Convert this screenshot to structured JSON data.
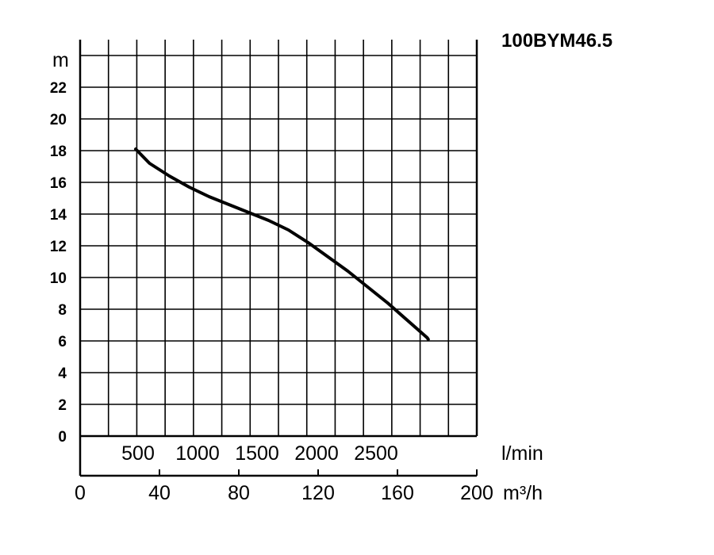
{
  "chart_data": {
    "type": "line",
    "title": "100BYM46.5",
    "ylabel": "m",
    "ylim": [
      0,
      24
    ],
    "yticks": [
      "0",
      "2",
      "4",
      "6",
      "8",
      "10",
      "12",
      "14",
      "16",
      "18",
      "20",
      "22"
    ],
    "x_lpm_label": "l/min",
    "x_lpm_ticks": [
      {
        "label": "500",
        "m3h": 30
      },
      {
        "label": "1000",
        "m3h": 60
      },
      {
        "label": "1500",
        "m3h": 90
      },
      {
        "label": "2000",
        "m3h": 120
      },
      {
        "label": "2500",
        "m3h": 150
      }
    ],
    "xlabel": "m³/h",
    "xlim": [
      0,
      200
    ],
    "xticks": [
      "0",
      "40",
      "80",
      "120",
      "160",
      "200"
    ],
    "grid": true,
    "series": [
      {
        "x": [
          28,
          35,
          45,
          55,
          65,
          75,
          85,
          95,
          105,
          115,
          125,
          135,
          145,
          155,
          165,
          175,
          175.5
        ],
        "y": [
          18.1,
          17.2,
          16.4,
          15.7,
          15.1,
          14.6,
          14.1,
          13.6,
          13.0,
          12.2,
          11.3,
          10.4,
          9.4,
          8.4,
          7.3,
          6.2,
          6.1
        ]
      }
    ]
  }
}
